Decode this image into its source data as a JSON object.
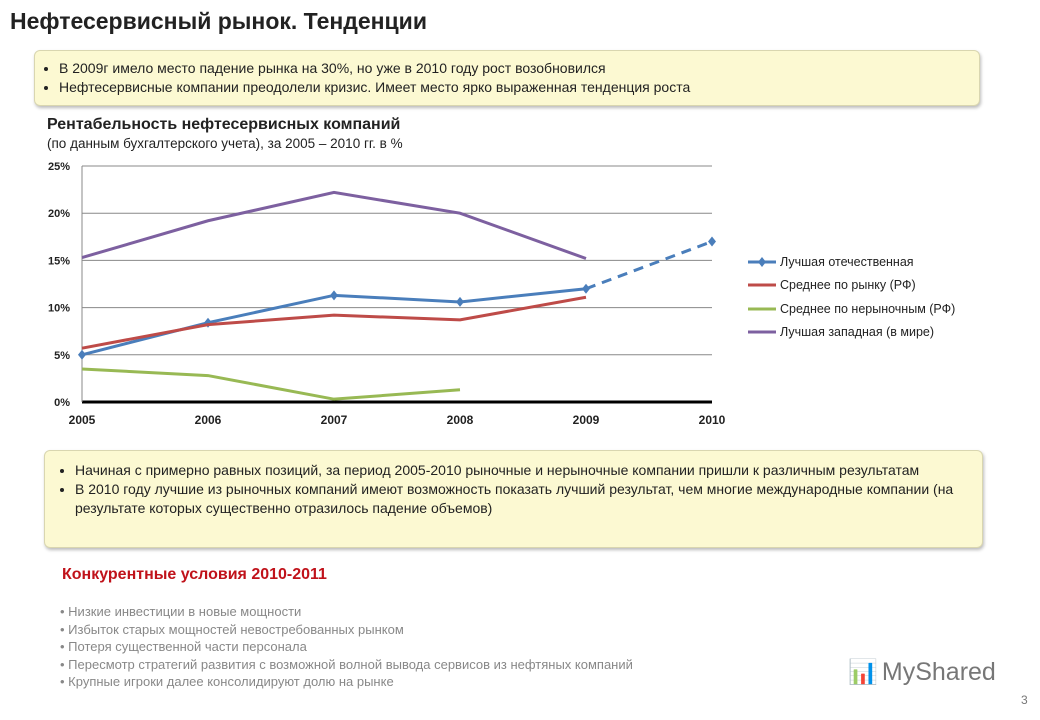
{
  "title": "Нефтесервисный рынок. Тенденции",
  "box1": [
    "В 2009г имело место падение рынка на 30%, но уже в 2010 году рост возобновился",
    "Нефтесервисные компании преодолели кризис. Имеет место ярко выраженная тенденция роста"
  ],
  "chart_data": {
    "type": "line",
    "title": "Рентабельность нефтесервисных компаний",
    "subtitle": "(по данным бухгалтерского учета), за 2005 – 2010 гг. в %",
    "x": [
      "2005",
      "2006",
      "2007",
      "2008",
      "2009",
      "2010"
    ],
    "y_ticks": [
      "0%",
      "5%",
      "10%",
      "15%",
      "20%",
      "25%"
    ],
    "ylim": [
      0,
      25
    ],
    "grid": true,
    "legend": "right",
    "series": [
      {
        "name": "Лучшая отечественная",
        "color": "#4a7ebb",
        "values": [
          5.0,
          8.4,
          11.3,
          10.6,
          12.0,
          17.0
        ],
        "dashed_from": "2009",
        "markers": "diamond"
      },
      {
        "name": "Среднее по рынку (РФ)",
        "color": "#be4b48",
        "values": [
          5.7,
          8.2,
          9.2,
          8.7,
          11.1,
          null
        ]
      },
      {
        "name": "Среднее по нерыночным (РФ)",
        "color": "#98b954",
        "values": [
          3.5,
          2.8,
          0.3,
          1.3,
          null,
          null
        ]
      },
      {
        "name": "Лучшая западная  (в мире)",
        "color": "#7d60a0",
        "values": [
          15.3,
          19.2,
          22.2,
          20.0,
          15.2,
          null
        ]
      }
    ]
  },
  "box2": [
    "Начиная с примерно равных позиций, за период 2005-2010 рыночные и нерыночные компании пришли к различным результатам",
    "В 2010 году лучшие из рыночных компаний имеют возможность показать лучший результат, чем многие международные компании (на результате которых существенно отразилось падение объемов)"
  ],
  "section_title": "Конкурентные условия 2010-2011",
  "conditions": [
    "• Низкие инвестиции в новые мощности",
    "• Избыток старых мощностей невостребованных рынком",
    "• Потеря существенной части персонала",
    "• Пересмотр стратегий развития с возможной  волной вывода сервисов из нефтяных компаний",
    "• Крупные игроки далее консолидируют долю на рынке"
  ],
  "logo": "MyShared",
  "page_number": "3"
}
